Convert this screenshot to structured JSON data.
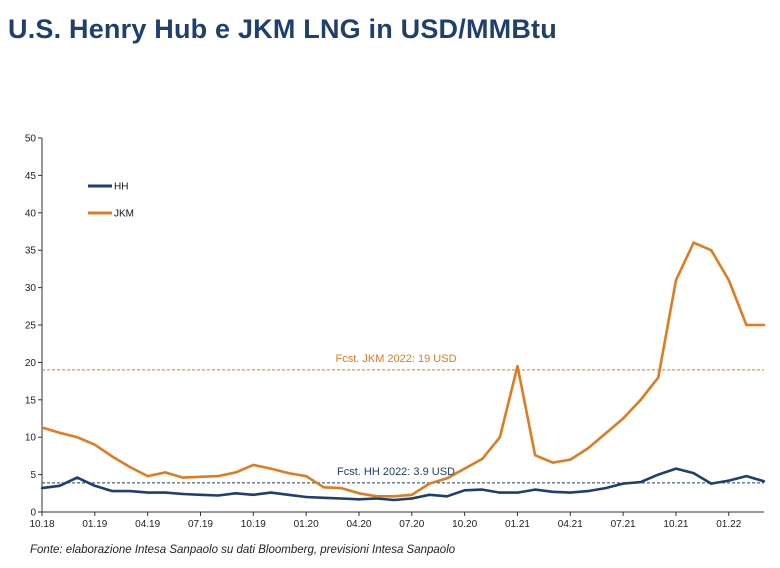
{
  "title": "U.S. Henry Hub e JKM LNG in USD/MMBtu",
  "source": "Fonte: elaborazione Intesa Sanpaolo su dati Bloomberg, previsioni Intesa Sanpaolo",
  "chart_data": {
    "type": "line",
    "title": "U.S. Henry Hub e JKM LNG in USD/MMBtu",
    "xlabel": "",
    "ylabel": "",
    "ylim": [
      0,
      50
    ],
    "yticks": [
      0,
      5,
      10,
      15,
      20,
      25,
      30,
      35,
      40,
      45,
      50
    ],
    "xlim": [
      "2018-10",
      "2022-03"
    ],
    "xticks": [
      "10.18",
      "01.19",
      "04.19",
      "07.19",
      "10.19",
      "01.20",
      "04.20",
      "07.20",
      "10.20",
      "01.21",
      "04.21",
      "07.21",
      "10.21",
      "01.22"
    ],
    "grid": false,
    "legend_position": "top-left",
    "series": [
      {
        "name": "HH",
        "color": "#1f3f6e",
        "x": [
          "2018-10",
          "2018-11",
          "2018-12",
          "2019-01",
          "2019-02",
          "2019-03",
          "2019-04",
          "2019-05",
          "2019-06",
          "2019-07",
          "2019-08",
          "2019-09",
          "2019-10",
          "2019-11",
          "2019-12",
          "2020-01",
          "2020-02",
          "2020-03",
          "2020-04",
          "2020-05",
          "2020-06",
          "2020-07",
          "2020-08",
          "2020-09",
          "2020-10",
          "2020-11",
          "2020-12",
          "2021-01",
          "2021-02",
          "2021-03",
          "2021-04",
          "2021-05",
          "2021-06",
          "2021-07",
          "2021-08",
          "2021-09",
          "2021-10",
          "2021-11",
          "2021-12",
          "2022-01",
          "2022-02",
          "2022-03"
        ],
        "values": [
          3.2,
          3.5,
          4.6,
          3.5,
          2.8,
          2.8,
          2.6,
          2.6,
          2.4,
          2.3,
          2.2,
          2.5,
          2.3,
          2.6,
          2.3,
          2.0,
          1.9,
          1.8,
          1.7,
          1.8,
          1.6,
          1.8,
          2.3,
          2.1,
          2.9,
          3.0,
          2.6,
          2.6,
          3.0,
          2.7,
          2.6,
          2.8,
          3.2,
          3.8,
          4.0,
          5.0,
          5.8,
          5.2,
          3.8,
          4.2,
          4.8,
          4.1
        ]
      },
      {
        "name": "JKM",
        "color": "#e07b20",
        "x": [
          "2018-10",
          "2018-11",
          "2018-12",
          "2019-01",
          "2019-02",
          "2019-03",
          "2019-04",
          "2019-05",
          "2019-06",
          "2019-07",
          "2019-08",
          "2019-09",
          "2019-10",
          "2019-11",
          "2019-12",
          "2020-01",
          "2020-02",
          "2020-03",
          "2020-04",
          "2020-05",
          "2020-06",
          "2020-07",
          "2020-08",
          "2020-09",
          "2020-10",
          "2020-11",
          "2020-12",
          "2021-01",
          "2021-02",
          "2021-03",
          "2021-04",
          "2021-05",
          "2021-06",
          "2021-07",
          "2021-08",
          "2021-09",
          "2021-10",
          "2021-11",
          "2021-12",
          "2022-01",
          "2022-02",
          "2022-03"
        ],
        "values": [
          11.3,
          10.6,
          10.0,
          9.0,
          7.4,
          6.0,
          4.8,
          5.3,
          4.6,
          4.7,
          4.8,
          5.3,
          6.3,
          5.8,
          5.2,
          4.8,
          3.3,
          3.2,
          2.5,
          2.1,
          2.1,
          2.3,
          3.8,
          4.5,
          5.8,
          7.1,
          10.0,
          19.5,
          7.6,
          6.6,
          7.0,
          8.5,
          10.5,
          12.5,
          15.0,
          18.0,
          31.0,
          36.0,
          35.0,
          31.0,
          25.0,
          25.0
        ]
      }
    ],
    "annotations": [
      {
        "text": "Fcst. JKM 2022: 19 USD",
        "y": 19.0,
        "color": "#e07b20"
      },
      {
        "text": "Fcst. HH 2022: 3.9 USD",
        "y": 3.9,
        "color": "#1f3f6e"
      }
    ]
  }
}
